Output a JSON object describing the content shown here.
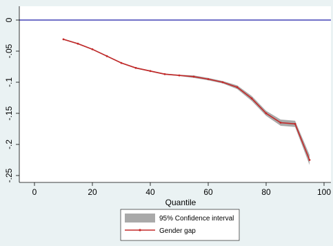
{
  "chart_data": {
    "type": "line",
    "xlabel": "Quantile",
    "ylabel": "",
    "xlim": [
      0,
      100
    ],
    "ylim": [
      -0.25,
      0
    ],
    "xticks": [
      0,
      20,
      40,
      60,
      80,
      100
    ],
    "xtick_labels": [
      "0",
      "20",
      "40",
      "60",
      "80",
      "100"
    ],
    "yticks": [
      0,
      -0.05,
      -0.1,
      -0.15,
      -0.2,
      -0.25
    ],
    "ytick_labels": [
      "0",
      "-.05",
      "-.1",
      "-.15",
      "-.2",
      "-.25"
    ],
    "reference_line": {
      "y": 0,
      "color": "#1a1aa6"
    },
    "series": [
      {
        "name": "Gender gap",
        "color": "#c42828",
        "marker": "dot",
        "x": [
          10,
          15,
          20,
          25,
          30,
          35,
          40,
          45,
          50,
          55,
          60,
          65,
          70,
          75,
          80,
          85,
          90,
          95
        ],
        "y": [
          -0.031,
          -0.038,
          -0.047,
          -0.058,
          -0.069,
          -0.077,
          -0.082,
          -0.087,
          -0.089,
          -0.091,
          -0.095,
          -0.1,
          -0.108,
          -0.126,
          -0.15,
          -0.165,
          -0.167,
          -0.225
        ],
        "ci_lower": [
          -0.032,
          -0.039,
          -0.048,
          -0.059,
          -0.07,
          -0.078,
          -0.083,
          -0.088,
          -0.09,
          -0.093,
          -0.097,
          -0.102,
          -0.111,
          -0.13,
          -0.154,
          -0.17,
          -0.172,
          -0.233
        ],
        "ci_upper": [
          -0.03,
          -0.037,
          -0.046,
          -0.057,
          -0.068,
          -0.076,
          -0.081,
          -0.086,
          -0.088,
          -0.089,
          -0.093,
          -0.098,
          -0.105,
          -0.122,
          -0.146,
          -0.16,
          -0.162,
          -0.217
        ]
      }
    ],
    "ci_name": "95% Confidence interval",
    "ci_color": "#a9a9a9",
    "legend": {
      "position": "bottom",
      "entries": [
        "95% Confidence interval",
        "Gender gap"
      ]
    },
    "grid": false
  }
}
